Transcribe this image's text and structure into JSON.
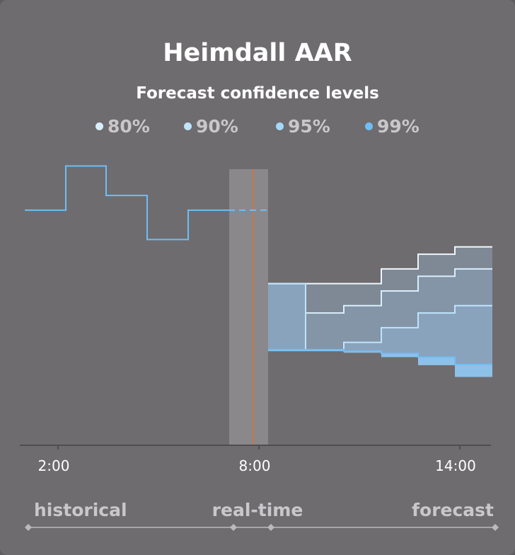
{
  "chart_data": {
    "type": "line",
    "title": "Heimdall AAR",
    "subtitle": "Forecast confidence levels",
    "legend": [
      {
        "name": "80%",
        "color": "#d9eefc"
      },
      {
        "name": "90%",
        "color": "#bfe4fb"
      },
      {
        "name": "95%",
        "color": "#a3d8fa"
      },
      {
        "name": "99%",
        "color": "#6fbef5"
      }
    ],
    "x_ticks": [
      "2:00",
      "8:00",
      "14:00"
    ],
    "phases": [
      "historical",
      "real-time",
      "forecast"
    ],
    "historical": {
      "steps": [
        {
          "start": "0:00",
          "end": "1:00",
          "value": 32
        },
        {
          "start": "1:00",
          "end": "2:00",
          "value": 38
        },
        {
          "start": "2:00",
          "end": "3:00",
          "value": 34
        },
        {
          "start": "3:00",
          "end": "4:00",
          "value": 28
        },
        {
          "start": "4:00",
          "end": "5:00",
          "value": 32
        }
      ],
      "color": "#6fbef5"
    },
    "realtime": {
      "start": "7:00",
      "end": "8:00",
      "value": 32,
      "now": "7:50",
      "now_color": "#d9703a"
    },
    "forecast": {
      "start_value": 22,
      "times": [
        "8:00",
        "9:00",
        "10:00",
        "11:00",
        "12:00",
        "13:00",
        "14:00"
      ],
      "upper": [
        [
          22,
          22,
          22,
          24,
          26,
          27
        ],
        [
          22,
          18,
          19,
          21,
          23,
          24
        ],
        [
          22,
          13,
          14,
          16,
          18,
          19
        ]
      ],
      "lower_99": [
        13,
        13,
        12.8,
        12.5,
        12,
        11
      ]
    }
  }
}
